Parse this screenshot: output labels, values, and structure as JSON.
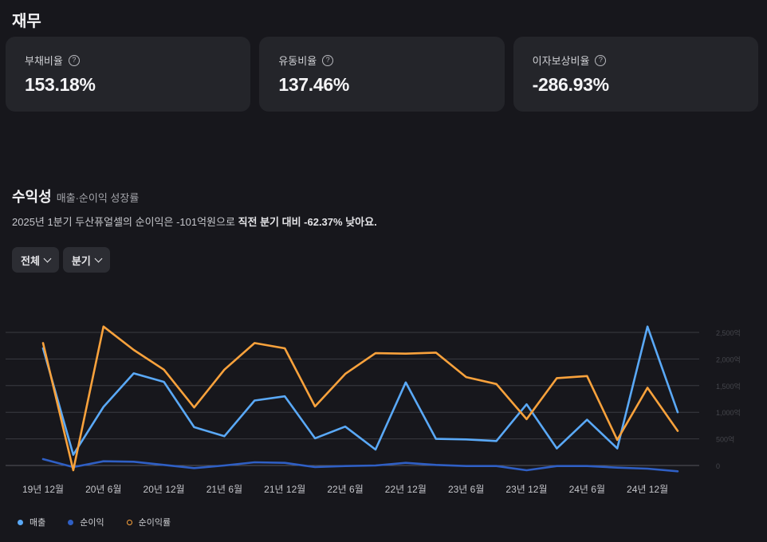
{
  "section": {
    "title": "재무"
  },
  "ratios": [
    {
      "label": "부채비율",
      "value": "153.18%"
    },
    {
      "label": "유동비율",
      "value": "137.46%"
    },
    {
      "label": "이자보상비율",
      "value": "-286.93%"
    }
  ],
  "profitability": {
    "title": "수익성",
    "subtitle": "매출·순이익 성장률",
    "summary_prefix": "2025년 1분기 두산퓨얼셀의 순이익은 -101억원으로 ",
    "summary_bold": "직전 분기 대비 -62.37% 낮아요."
  },
  "filters": {
    "scope": "전체",
    "period": "분기"
  },
  "chart_data": {
    "type": "line",
    "x": [
      "19Q4",
      "20Q1",
      "20Q2",
      "20Q3",
      "20Q4",
      "21Q1",
      "21Q2",
      "21Q3",
      "21Q4",
      "22Q1",
      "22Q2",
      "22Q3",
      "22Q4",
      "23Q1",
      "23Q2",
      "23Q3",
      "23Q4",
      "24Q1",
      "24Q2",
      "24Q3",
      "24Q4",
      "25Q1"
    ],
    "xtick_labels": [
      "19년 12월",
      "20년 6월",
      "20년 12월",
      "21년 6월",
      "21년 12월",
      "22년 6월",
      "22년 12월",
      "23년 6월",
      "23년 12월",
      "24년 6월",
      "24년 12월"
    ],
    "ytick_labels": [
      "2,500억",
      "2,000억",
      "1,500억",
      "1,000억",
      "500억",
      "0"
    ],
    "ylim": [
      0,
      2500
    ],
    "grid": true,
    "series": [
      {
        "name": "매출",
        "color": "#5aa9f7",
        "values": [
          2200,
          200,
          1100,
          1730,
          1570,
          720,
          550,
          1220,
          1300,
          510,
          730,
          300,
          1560,
          500,
          490,
          460,
          1150,
          320,
          860,
          320,
          2610,
          1000
        ]
      },
      {
        "name": "순이익",
        "color": "#2f5fc4",
        "values": [
          120,
          -30,
          80,
          70,
          10,
          -50,
          0,
          60,
          50,
          -30,
          -10,
          0,
          50,
          10,
          -10,
          -10,
          -90,
          -10,
          -10,
          -40,
          -60,
          -110
        ]
      },
      {
        "name": "순이익률",
        "color": "#f9a23c",
        "values": [
          2300,
          -90,
          2610,
          2170,
          1800,
          1090,
          1800,
          2300,
          2200,
          1110,
          1720,
          2110,
          2100,
          2120,
          1660,
          1530,
          870,
          1640,
          1680,
          480,
          1460,
          650
        ]
      }
    ],
    "legend": {
      "position": "bottom-left"
    }
  }
}
